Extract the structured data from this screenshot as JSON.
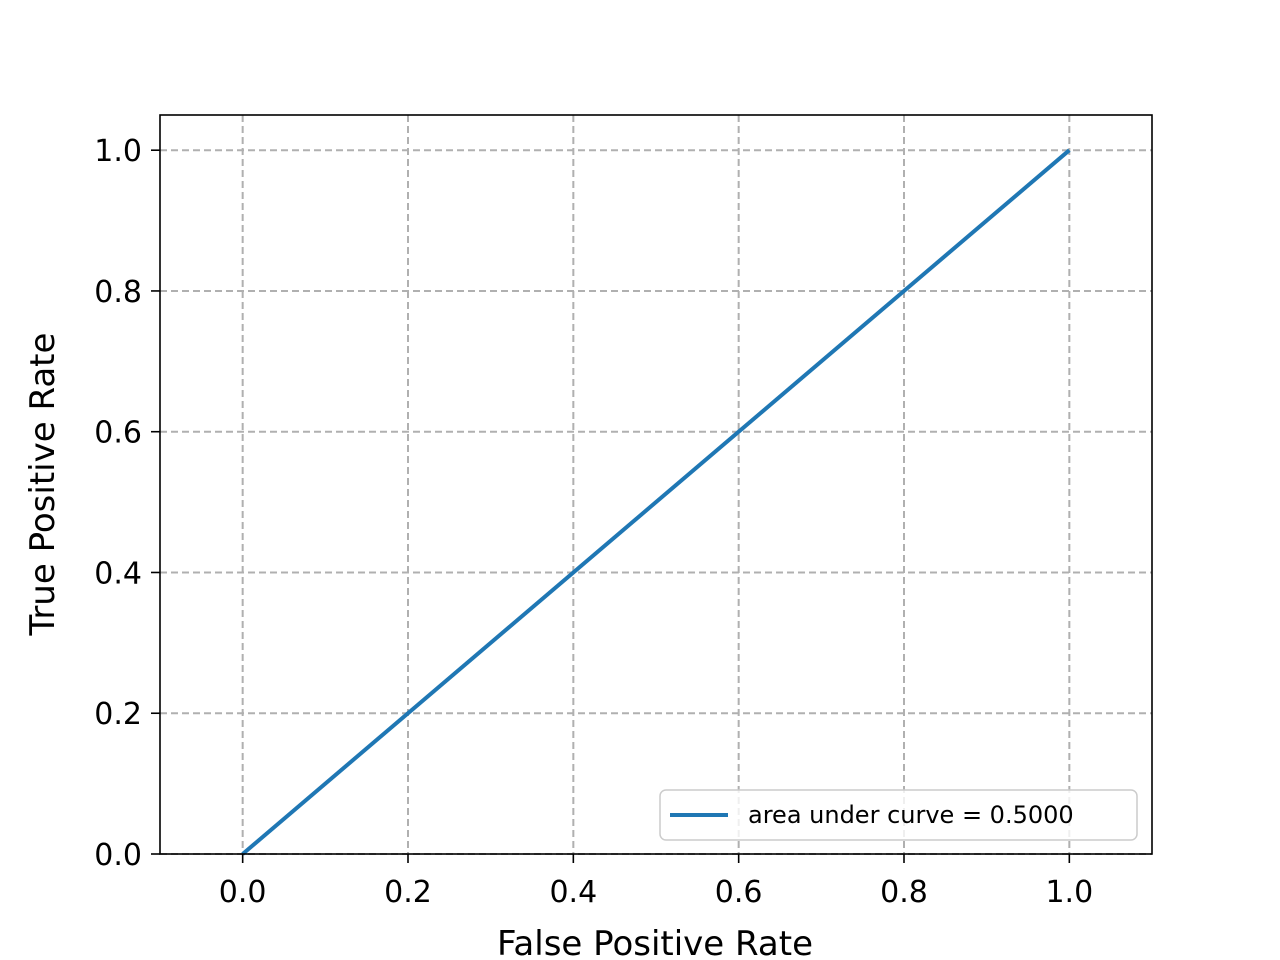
{
  "chart_data": {
    "type": "line",
    "title": "",
    "xlabel": "False Positive Rate",
    "ylabel": "True Positive Rate",
    "xlim": [
      -0.1,
      1.1
    ],
    "ylim": [
      0.0,
      1.05
    ],
    "x_ticks": [
      "0.0",
      "0.2",
      "0.4",
      "0.6",
      "0.8",
      "1.0"
    ],
    "y_ticks": [
      "0.0",
      "0.2",
      "0.4",
      "0.6",
      "0.8",
      "1.0"
    ],
    "grid": true,
    "legend_position": "lower-right",
    "series": [
      {
        "name": "area under curve = 0.5000",
        "color": "#1f77b4",
        "x": [
          0.0,
          1.0
        ],
        "y": [
          0.0,
          1.0
        ]
      }
    ]
  }
}
